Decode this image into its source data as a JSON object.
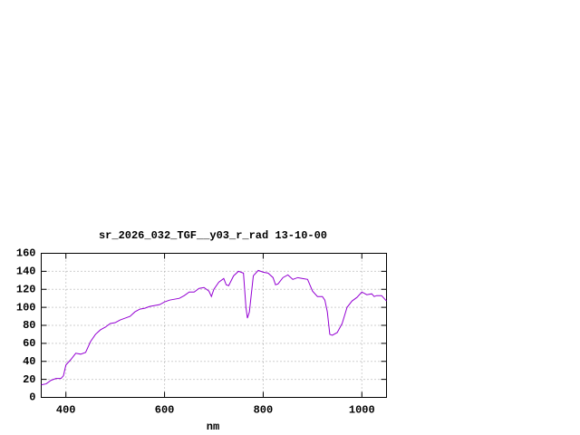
{
  "chart_data": {
    "type": "line",
    "title": "sr_2026_032_TGF__y03_r_rad 13-10-00",
    "x_label": "nm",
    "x": [
      350,
      360,
      370,
      380,
      390,
      395,
      400,
      410,
      420,
      430,
      440,
      450,
      460,
      470,
      480,
      490,
      500,
      510,
      520,
      530,
      540,
      550,
      560,
      570,
      580,
      590,
      600,
      610,
      620,
      630,
      640,
      650,
      660,
      670,
      680,
      690,
      695,
      700,
      710,
      720,
      725,
      730,
      740,
      750,
      760,
      765,
      768,
      772,
      780,
      790,
      800,
      810,
      820,
      825,
      830,
      840,
      850,
      860,
      870,
      880,
      890,
      900,
      910,
      920,
      925,
      930,
      935,
      940,
      950,
      960,
      970,
      980,
      990,
      1000,
      1010,
      1020,
      1025,
      1030,
      1040,
      1045,
      1050
    ],
    "series": [
      {
        "color": "#9400d3",
        "values": [
          14,
          15,
          19,
          21,
          21,
          24,
          36,
          42,
          49,
          48,
          50,
          62,
          70,
          75,
          78,
          82,
          83,
          86,
          88,
          90,
          95,
          98,
          99,
          101,
          102,
          103,
          106,
          108,
          109,
          110,
          113,
          117,
          117,
          121,
          122,
          118,
          112,
          120,
          128,
          132,
          125,
          124,
          135,
          140,
          138,
          100,
          88,
          95,
          135,
          141,
          139,
          138,
          133,
          125,
          126,
          133,
          136,
          131,
          133,
          132,
          131,
          118,
          112,
          112,
          108,
          95,
          70,
          69,
          72,
          82,
          100,
          107,
          111,
          117,
          114,
          115,
          112,
          113,
          113,
          110,
          107
        ]
      }
    ],
    "xlim": [
      350,
      1050
    ],
    "ylim": [
      0,
      160
    ],
    "xticks": [
      400,
      600,
      800,
      1000
    ],
    "yticks": [
      0,
      20,
      40,
      60,
      80,
      100,
      120,
      140,
      160
    ],
    "grid": true
  }
}
